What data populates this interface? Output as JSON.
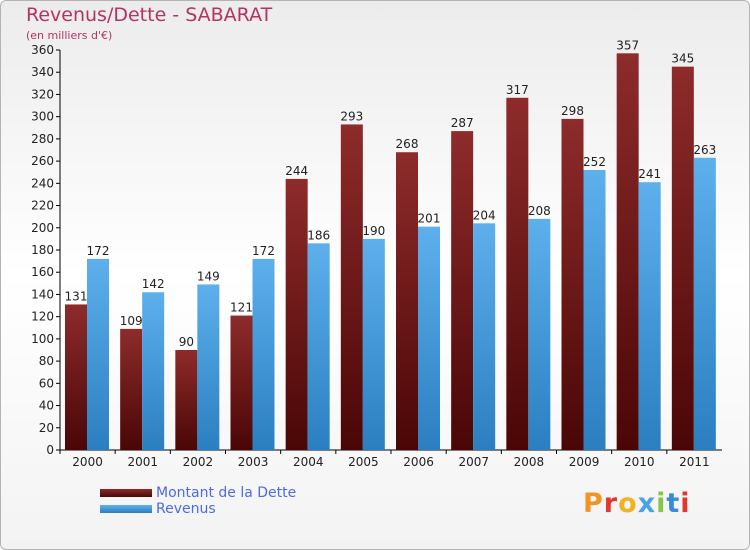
{
  "chart_data": {
    "type": "bar",
    "title": "Revenus/Dette - SABARAT",
    "subtitle": "(en milliers d'€)",
    "categories": [
      "2000",
      "2001",
      "2002",
      "2003",
      "2004",
      "2005",
      "2006",
      "2007",
      "2008",
      "2009",
      "2010",
      "2011"
    ],
    "series": [
      {
        "name": "Montant de la Dette",
        "values": [
          131,
          109,
          90,
          121,
          244,
          293,
          268,
          287,
          317,
          298,
          357,
          345
        ],
        "color": "#7a1e1e"
      },
      {
        "name": "Revenus",
        "values": [
          172,
          142,
          149,
          172,
          186,
          190,
          201,
          204,
          208,
          252,
          241,
          263
        ],
        "color": "#4aa3e6"
      }
    ],
    "ylim": [
      0,
      360
    ],
    "yticks": [
      0,
      20,
      40,
      60,
      80,
      100,
      120,
      140,
      160,
      180,
      200,
      220,
      240,
      260,
      280,
      300,
      320,
      340,
      360
    ],
    "grid": false,
    "data_labels": true,
    "legend_position": "bottom-left"
  },
  "logo": {
    "text": "Proxiti",
    "colors": [
      "#f29322",
      "#e5362d",
      "#f2b321",
      "#4aa3e6",
      "#88c448",
      "#3a8bd6",
      "#e5362d"
    ]
  }
}
